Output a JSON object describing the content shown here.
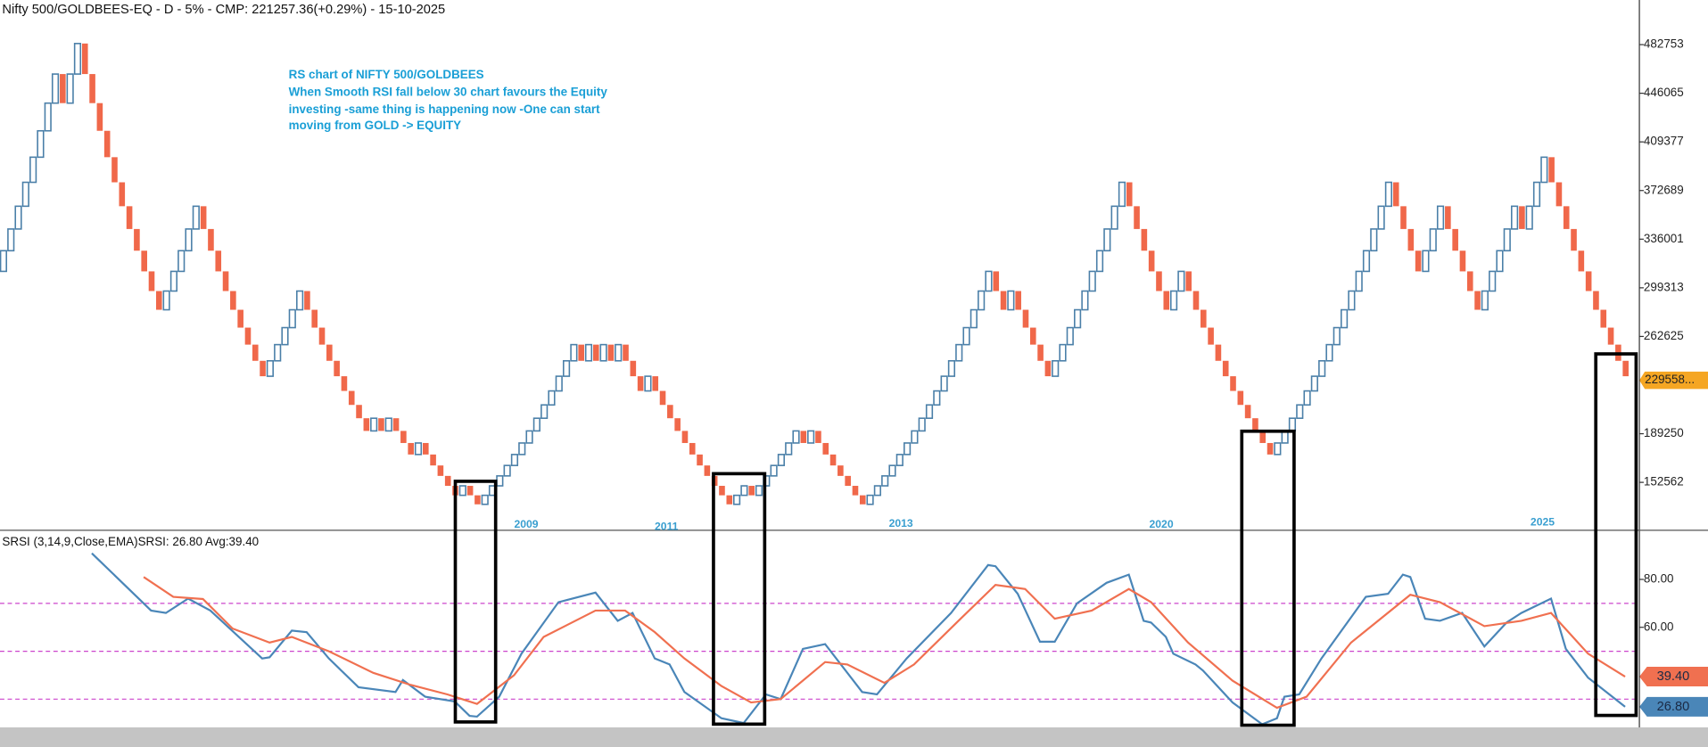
{
  "chart_data": [
    {
      "type": "renko",
      "title": "Nifty 500/GOLDBEES-EQ - D - 5% - CMP: 221257.36(+0.29%) - 15-10-2025",
      "annotations": [
        "RS chart of NIFTY 500/GOLDBEES",
        "When Smooth RSI fall below 30 chart favours the Equity",
        "investing -same thing is happening now -One can start",
        "moving from GOLD -> EQUITY"
      ],
      "year_labels": [
        "2009",
        "2011",
        "2013",
        "2020",
        "2025"
      ],
      "up_color": "#4a7fa8",
      "down_color": "#f0684a",
      "ylim": [
        116400,
        516400
      ],
      "yticks": [
        152562,
        189250,
        262625,
        299313,
        336001,
        372689,
        409377,
        446065,
        482753
      ],
      "current_price": 229558,
      "current_price_label": "229558...",
      "current_color": "#f5a623",
      "values": [
        311715,
        327301,
        343666,
        360849,
        378892,
        397837,
        417729,
        438615,
        460546,
        438615,
        460546,
        483573,
        460546,
        438615,
        417729,
        397837,
        378892,
        360849,
        343666,
        327301,
        311715,
        296872,
        282735,
        296872,
        311715,
        327301,
        343666,
        360849,
        343666,
        327301,
        311715,
        296872,
        282735,
        269271,
        256449,
        244237,
        232607,
        244237,
        256449,
        269271,
        282735,
        296872,
        282735,
        269271,
        256449,
        244237,
        232607,
        221530,
        210981,
        200934,
        191366,
        200934,
        191366,
        200934,
        191366,
        182253,
        173574,
        182253,
        173574,
        165309,
        157437,
        149940,
        142800,
        149940,
        142800,
        136000,
        142800,
        149940,
        157437,
        165309,
        173574,
        182253,
        191366,
        200934,
        210981,
        221530,
        232607,
        244237,
        256449,
        244237,
        256449,
        244237,
        256449,
        244237,
        256449,
        244237,
        232607,
        221530,
        232607,
        221530,
        210981,
        200934,
        191366,
        182253,
        173574,
        165309,
        157437,
        149940,
        142800,
        136000,
        142800,
        149940,
        142800,
        149940,
        157437,
        165309,
        173574,
        182253,
        191366,
        182253,
        191366,
        182253,
        173574,
        165309,
        157437,
        149940,
        142800,
        136000,
        142800,
        149940,
        157437,
        165309,
        173574,
        182253,
        191366,
        200934,
        210981,
        221530,
        232607,
        244237,
        256449,
        269271,
        282735,
        296872,
        311715,
        296872,
        282735,
        296872,
        282735,
        269271,
        256449,
        244237,
        232607,
        244237,
        256449,
        269271,
        282735,
        296872,
        311715,
        327301,
        343666,
        360849,
        378892,
        360849,
        343666,
        327301,
        311715,
        296872,
        282735,
        296872,
        311715,
        296872,
        282735,
        269271,
        256449,
        244237,
        232607,
        221530,
        210981,
        200934,
        191366,
        182253,
        173574,
        182253,
        191366,
        200934,
        210981,
        221530,
        232607,
        244237,
        256449,
        269271,
        282735,
        296872,
        311715,
        327301,
        343666,
        360849,
        378892,
        360849,
        343666,
        327301,
        311715,
        327301,
        343666,
        360849,
        343666,
        327301,
        311715,
        296872,
        282735,
        296872,
        311715,
        327301,
        343666,
        360849,
        343666,
        360849,
        378892,
        397837,
        378892,
        360849,
        343666,
        327301,
        311715,
        296872,
        282735,
        269271,
        256449,
        244237,
        232607
      ]
    },
    {
      "type": "line",
      "title": "SRSI (3,14,9,Close,EMA)SRSI: 26.80 Avg:39.40",
      "ylim": [
        18.2,
        100.5
      ],
      "yticks": [
        {
          "value": 80,
          "label": "80.00"
        },
        {
          "value": 60,
          "label": "60.00"
        }
      ],
      "hlines": [
        70,
        50,
        30
      ],
      "hline_color": "#cc44cc",
      "series": [
        {
          "color": "#4a86b8",
          "current_label": "26.80",
          "x": [
            13,
            21,
            23,
            26,
            29,
            36,
            37,
            40,
            42,
            45,
            49,
            54,
            55,
            58,
            62,
            64,
            65,
            68,
            71,
            76,
            81,
            84,
            86,
            89,
            91,
            93,
            98,
            101,
            104,
            106,
            109,
            112,
            117,
            119,
            123,
            129,
            134,
            135,
            138,
            141,
            143,
            146,
            150,
            153,
            155,
            156,
            158,
            159,
            162,
            163,
            167,
            171,
            173,
            174,
            176,
            179,
            185,
            188,
            190,
            191,
            193,
            195,
            198,
            201,
            204,
            206,
            210,
            212,
            215,
            220
          ],
          "values": [
            90.9,
            67,
            66,
            72,
            67,
            47,
            47.5,
            58.6,
            58,
            47,
            35,
            33,
            38,
            31,
            29,
            23,
            22.7,
            31,
            49,
            70.5,
            74.5,
            62.7,
            66,
            47,
            44.5,
            33,
            22,
            20,
            32,
            30,
            51,
            53,
            33,
            32,
            47,
            66,
            86,
            85.5,
            74,
            54,
            54,
            70,
            78.6,
            82,
            62.7,
            62,
            56,
            49,
            44.5,
            42,
            28.6,
            19.5,
            22,
            31,
            32,
            47,
            72.7,
            74,
            82,
            81,
            63.6,
            62.7,
            66,
            52,
            62,
            66,
            72,
            51,
            39,
            26.8
          ]
        },
        {
          "color": "#f07050",
          "current_label": "39.40",
          "x": [
            20,
            24,
            28,
            32,
            37,
            40,
            45,
            51,
            56,
            61,
            65,
            70,
            74,
            81,
            85,
            89,
            93,
            98,
            102,
            106,
            112,
            115,
            120,
            124,
            130,
            135,
            139,
            143,
            148,
            153,
            156,
            161,
            167,
            173,
            177,
            183,
            191,
            195,
            201,
            206,
            210,
            215,
            220
          ],
          "values": [
            81,
            72.7,
            71.8,
            59.5,
            53.6,
            56,
            50,
            41,
            36,
            32,
            28,
            40,
            56,
            67,
            67,
            58,
            47,
            35.5,
            28.6,
            30,
            45.5,
            44.5,
            36.8,
            44.5,
            62.7,
            77.7,
            76,
            63.6,
            67,
            76,
            70.5,
            53.6,
            37.7,
            26.4,
            31,
            53.6,
            73.6,
            70.5,
            60.5,
            62.7,
            66,
            49,
            39.4
          ]
        }
      ]
    }
  ]
}
